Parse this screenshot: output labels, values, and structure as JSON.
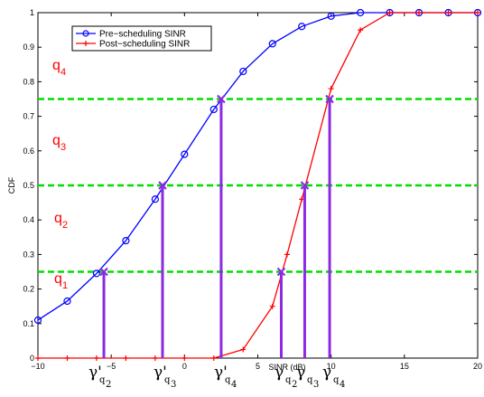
{
  "chart_data": {
    "type": "line",
    "title": "",
    "xlabel": "SINR (dB)",
    "ylabel": "CDF",
    "xlim": [
      -10,
      20
    ],
    "ylim": [
      0,
      1
    ],
    "x_ticks": [
      -10,
      -5,
      0,
      5,
      10,
      15,
      20
    ],
    "y_ticks": [
      0,
      0.1,
      0.2,
      0.3,
      0.4,
      0.5,
      0.6,
      0.7,
      0.8,
      0.9,
      1
    ],
    "legend_position": "top-left",
    "grid": false,
    "series": [
      {
        "name": "Pre−scheduling SINR",
        "color": "#0000ff",
        "marker": "circle",
        "x": [
          -10,
          -8,
          -6,
          -4,
          -2,
          0,
          2,
          4,
          6,
          8,
          10,
          12,
          14,
          16,
          18,
          20
        ],
        "y": [
          0.11,
          0.165,
          0.245,
          0.34,
          0.46,
          0.59,
          0.72,
          0.83,
          0.91,
          0.96,
          0.99,
          1.0,
          1.0,
          1.0,
          1.0,
          1.0
        ]
      },
      {
        "name": "Post−scheduling SINR",
        "color": "#ff0000",
        "marker": "plus",
        "x": [
          -10,
          -8,
          -6,
          -4,
          -2,
          0,
          2,
          4,
          6,
          7,
          8,
          10,
          12,
          14,
          16,
          18,
          20
        ],
        "y": [
          0.0,
          0.0,
          0.0,
          0.0,
          0.0,
          0.0,
          0.0,
          0.025,
          0.15,
          0.3,
          0.46,
          0.78,
          0.95,
          1.0,
          1.0,
          1.0,
          1.0
        ]
      }
    ],
    "thresholds": {
      "color": "#00dd00",
      "y": [
        0.25,
        0.5,
        0.75
      ]
    },
    "markers": {
      "color": "#8a2be2",
      "points": [
        {
          "x": -5.5,
          "y": 0.25
        },
        {
          "x": -1.5,
          "y": 0.5
        },
        {
          "x": 2.5,
          "y": 0.75
        },
        {
          "x": 6.6,
          "y": 0.25
        },
        {
          "x": 8.2,
          "y": 0.5
        },
        {
          "x": 9.9,
          "y": 0.75
        }
      ]
    },
    "region_labels": [
      {
        "base": "q",
        "sub": "4"
      },
      {
        "base": "q",
        "sub": "3"
      },
      {
        "base": "q",
        "sub": "2"
      },
      {
        "base": "q",
        "sub": "1"
      }
    ],
    "gamma_labels": [
      {
        "base": "γ'",
        "sub": "q",
        "subsub": "2"
      },
      {
        "base": "γ'",
        "sub": "q",
        "subsub": "3"
      },
      {
        "base": "γ'",
        "sub": "q",
        "subsub": "4"
      },
      {
        "base": "γ",
        "sub": "q",
        "subsub": "2"
      },
      {
        "base": "γ",
        "sub": "q",
        "subsub": "3"
      },
      {
        "base": "γ",
        "sub": "q",
        "subsub": "4"
      }
    ]
  }
}
